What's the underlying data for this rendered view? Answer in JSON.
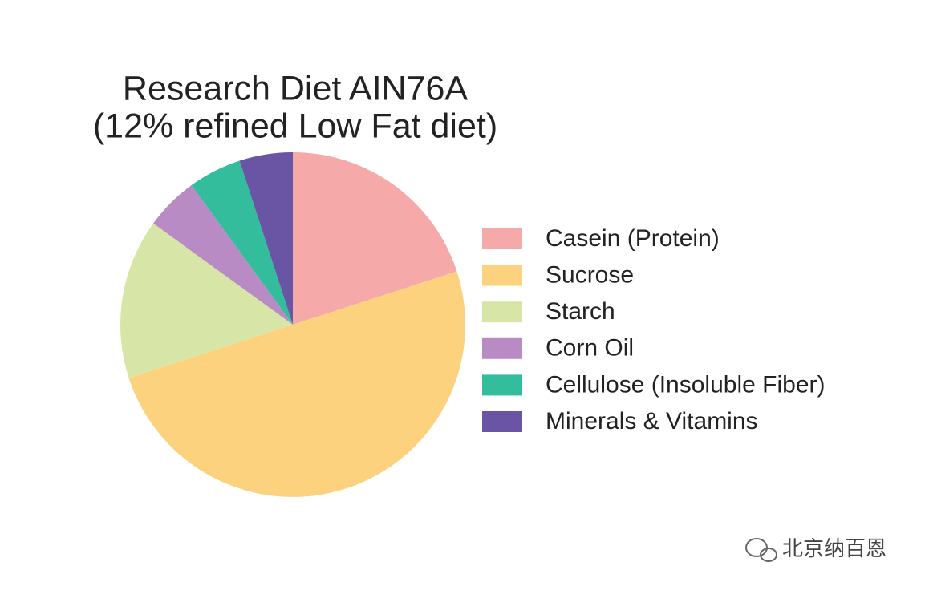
{
  "chart_data": {
    "type": "pie",
    "title": "Research Diet AIN76A",
    "subtitle": "(12% refined Low Fat diet)",
    "categories": [
      "Casein (Protein)",
      "Sucrose",
      "Starch",
      "Corn Oil",
      "Cellulose (Insoluble Fiber)",
      "Minerals  & Vitamins"
    ],
    "values": [
      20,
      50,
      15,
      5,
      5,
      5
    ],
    "colors": [
      "#f5a9a8",
      "#fdd27e",
      "#d7e6a7",
      "#b98bc4",
      "#33bd9c",
      "#6a55a4"
    ]
  },
  "watermark": "北京纳百恩"
}
